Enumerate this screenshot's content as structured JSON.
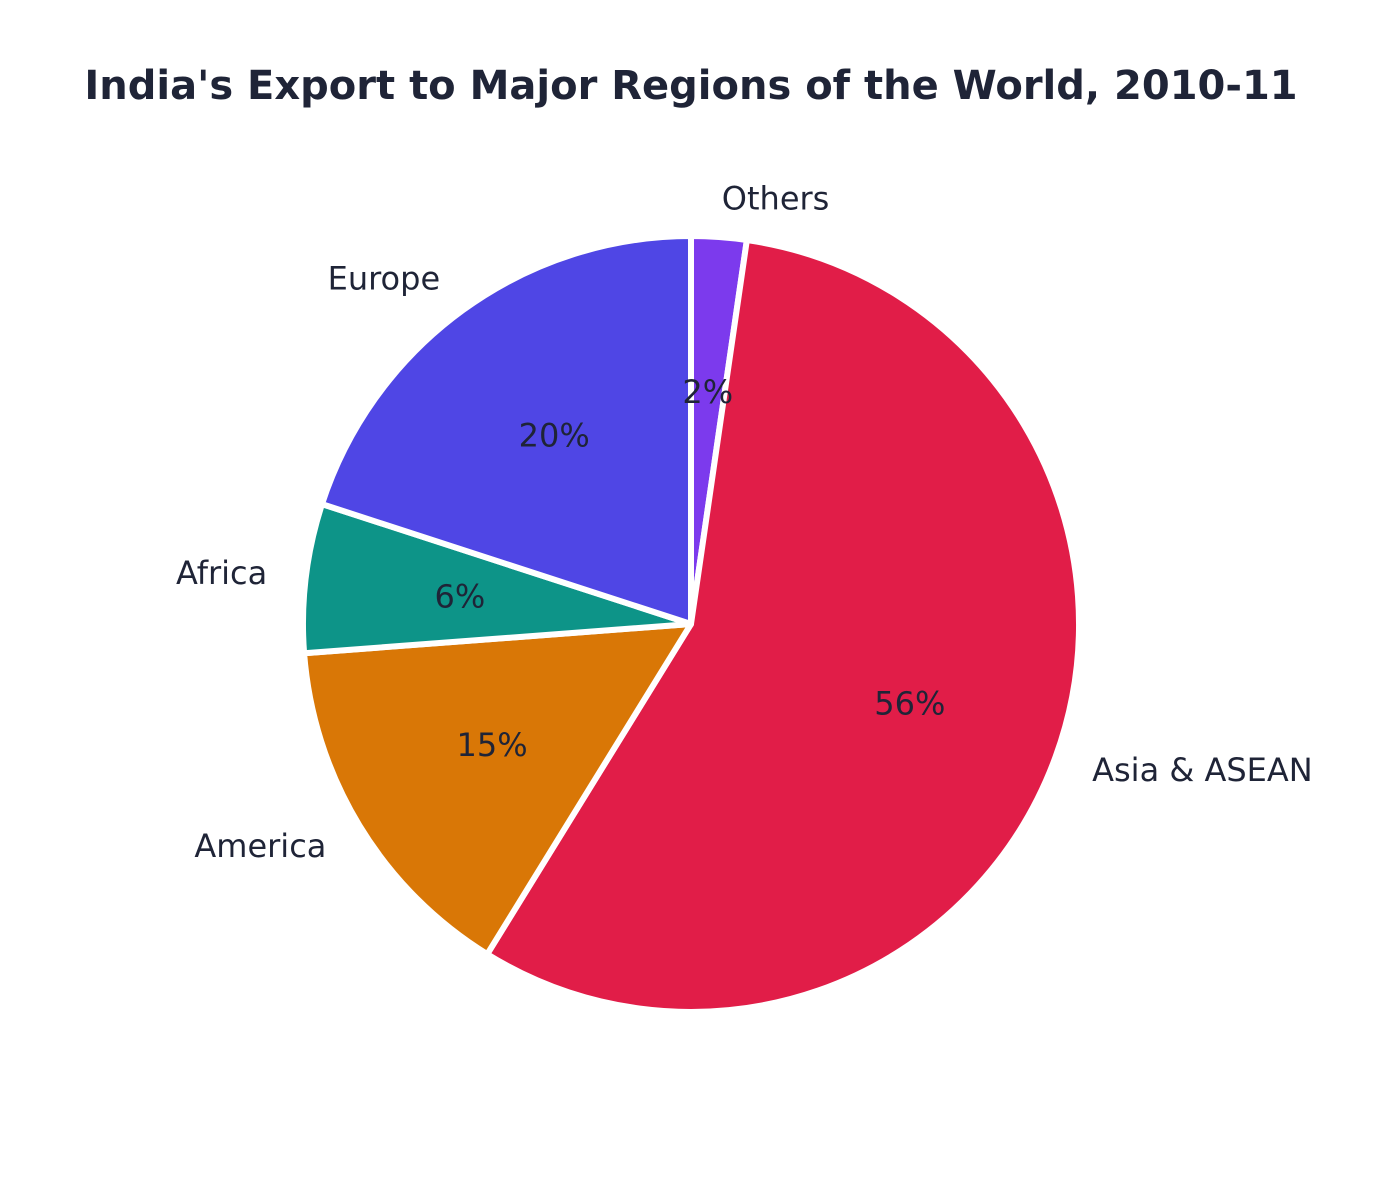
{
  "chart_data": {
    "type": "pie",
    "title": "India's Export to Major Regions of the World, 2010-11",
    "start_angle_deg": 90,
    "direction": "clockwise",
    "slices": [
      {
        "label": "Others",
        "value": 2.3,
        "pct_label": "2%",
        "color": "#7c3aed"
      },
      {
        "label": "Asia & ASEAN",
        "value": 56.5,
        "pct_label": "56%",
        "color": "#e11d48"
      },
      {
        "label": "America",
        "value": 15.0,
        "pct_label": "15%",
        "color": "#d97706"
      },
      {
        "label": "Africa",
        "value": 6.2,
        "pct_label": "6%",
        "color": "#0d9488"
      },
      {
        "label": "Europe",
        "value": 20.0,
        "pct_label": "20%",
        "color": "#4f46e5"
      }
    ]
  }
}
